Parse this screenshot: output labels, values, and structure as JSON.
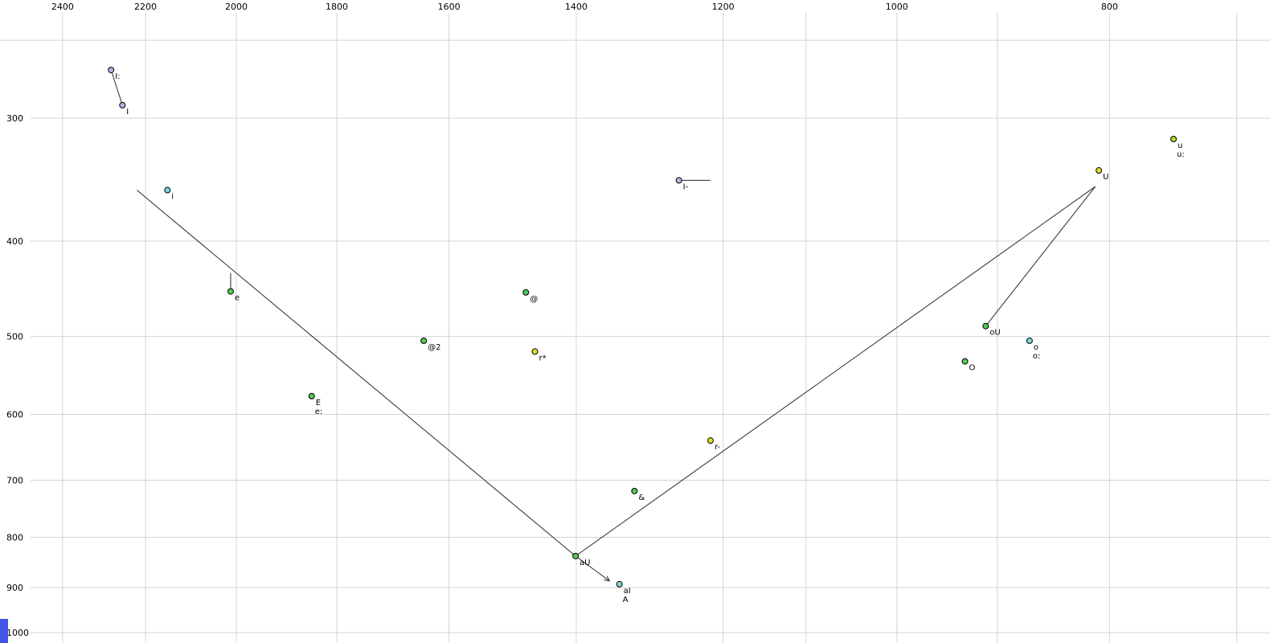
{
  "chart_data": {
    "type": "scatter",
    "title": "",
    "xlabel": "",
    "ylabel": "",
    "grid": true,
    "x_axis": {
      "scale": "log",
      "domain": [
        2563,
        676
      ],
      "ticks": [
        {
          "hz": 2400,
          "label": "2400"
        },
        {
          "hz": 2200,
          "label": "2200"
        },
        {
          "hz": 2000,
          "label": "2000"
        },
        {
          "hz": 1800,
          "label": "1800"
        },
        {
          "hz": 1600,
          "label": "1600"
        },
        {
          "hz": 1400,
          "label": "1400"
        },
        {
          "hz": 1200,
          "label": "1200"
        },
        {
          "hz": 1000,
          "label": "1000"
        },
        {
          "hz": 800,
          "label": "800"
        }
      ],
      "minor_ticks": [
        1100,
        900,
        700
      ]
    },
    "y_axis": {
      "scale": "log",
      "domain": [
        227.5,
        1024.6
      ],
      "ticks": [
        {
          "hz": 300,
          "label": "300"
        },
        {
          "hz": 400,
          "label": "400"
        },
        {
          "hz": 500,
          "label": "500"
        },
        {
          "hz": 600,
          "label": "600"
        },
        {
          "hz": 700,
          "label": "700"
        },
        {
          "hz": 800,
          "label": "800"
        },
        {
          "hz": 900,
          "label": "900"
        },
        {
          "hz": 1000,
          "label": "1000"
        }
      ],
      "minor_ticks": [
        250
      ]
    },
    "points": [
      {
        "label": "I:",
        "f2": 2281,
        "f1": 268,
        "color": "lavender"
      },
      {
        "label": "I",
        "f2": 2254,
        "f1": 291,
        "color": "lavender"
      },
      {
        "label": "i",
        "f2": 2150,
        "f1": 355,
        "color": "cyan"
      },
      {
        "label": "I-",
        "f2": 1257,
        "f1": 347,
        "color": "lavender"
      },
      {
        "label": "u",
        "label2": "u:",
        "f2": 748,
        "f1": 315,
        "color": "yellowgreen"
      },
      {
        "label": "U",
        "f2": 809,
        "f1": 339,
        "color": "yellow"
      },
      {
        "label": "e",
        "f2": 2012,
        "f1": 450,
        "color": "green"
      },
      {
        "label": "@",
        "f2": 1476,
        "f1": 451,
        "color": "green"
      },
      {
        "label": "@2",
        "f2": 1643,
        "f1": 505,
        "color": "green"
      },
      {
        "label": "r*",
        "f2": 1462,
        "f1": 518,
        "color": "yellow"
      },
      {
        "label": "oU",
        "f2": 911,
        "f1": 488,
        "color": "green"
      },
      {
        "label": "o",
        "label2": "o:",
        "f2": 870,
        "f1": 505,
        "color": "cyan"
      },
      {
        "label": "O",
        "f2": 931,
        "f1": 530,
        "color": "green"
      },
      {
        "label": "E",
        "label2": "e:",
        "f2": 1848,
        "f1": 575,
        "color": "green"
      },
      {
        "label": "r-",
        "f2": 1216,
        "f1": 638,
        "color": "yellow"
      },
      {
        "label": "&",
        "f2": 1317,
        "f1": 718,
        "color": "green"
      },
      {
        "label": "aU",
        "f2": 1401,
        "f1": 836,
        "color": "green"
      },
      {
        "label": "aI",
        "label2": "A",
        "f2": 1338,
        "f1": 893,
        "color": "cyan"
      }
    ],
    "segments": [
      {
        "from": [
          2220,
          355
        ],
        "to": [
          1401,
          836
        ]
      },
      {
        "from": [
          1401,
          836
        ],
        "to": [
          812,
          352
        ]
      },
      {
        "from": [
          812,
          352
        ],
        "to": [
          911,
          488
        ]
      },
      {
        "from": [
          1401,
          836
        ],
        "to": [
          1352,
          886
        ],
        "arrow": true
      },
      {
        "from": [
          2281,
          268
        ],
        "to": [
          2254,
          291
        ]
      },
      {
        "from": [
          1257,
          347
        ],
        "to": [
          1216,
          347
        ]
      },
      {
        "from": [
          2012,
          431
        ],
        "to": [
          2012,
          447
        ]
      }
    ],
    "colors": {
      "lavender": "#b0b4e8",
      "cyan": "#7ad8d8",
      "green": "#55c855",
      "yellow": "#dede2a",
      "yellowgreen": "#a6de2a",
      "point_stroke": "#000000",
      "grid": "#d4d4d4",
      "line": "#2a2a2a",
      "background": "#ffffff",
      "corner_marker": "#4155e8"
    }
  }
}
